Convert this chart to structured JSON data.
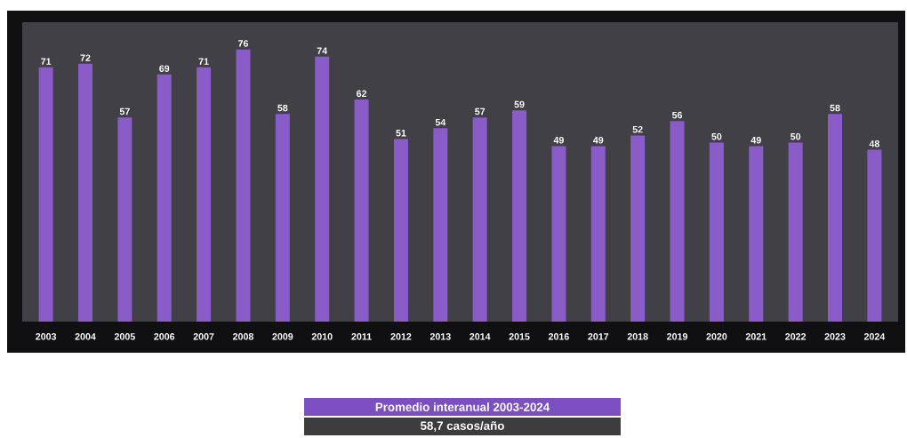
{
  "chart_data": {
    "type": "bar",
    "categories": [
      "2003",
      "2004",
      "2005",
      "2006",
      "2007",
      "2008",
      "2009",
      "2010",
      "2011",
      "2012",
      "2013",
      "2014",
      "2015",
      "2016",
      "2017",
      "2018",
      "2019",
      "2020",
      "2021",
      "2022",
      "2023",
      "2024"
    ],
    "values": [
      71,
      72,
      57,
      69,
      71,
      76,
      58,
      74,
      62,
      51,
      54,
      57,
      59,
      49,
      49,
      52,
      56,
      50,
      49,
      50,
      58,
      48
    ],
    "color": "#8a5cc8",
    "data_labels": true,
    "annotations": [
      "Promedio interanual 2003-2024",
      "58,7 casos/año"
    ]
  }
}
